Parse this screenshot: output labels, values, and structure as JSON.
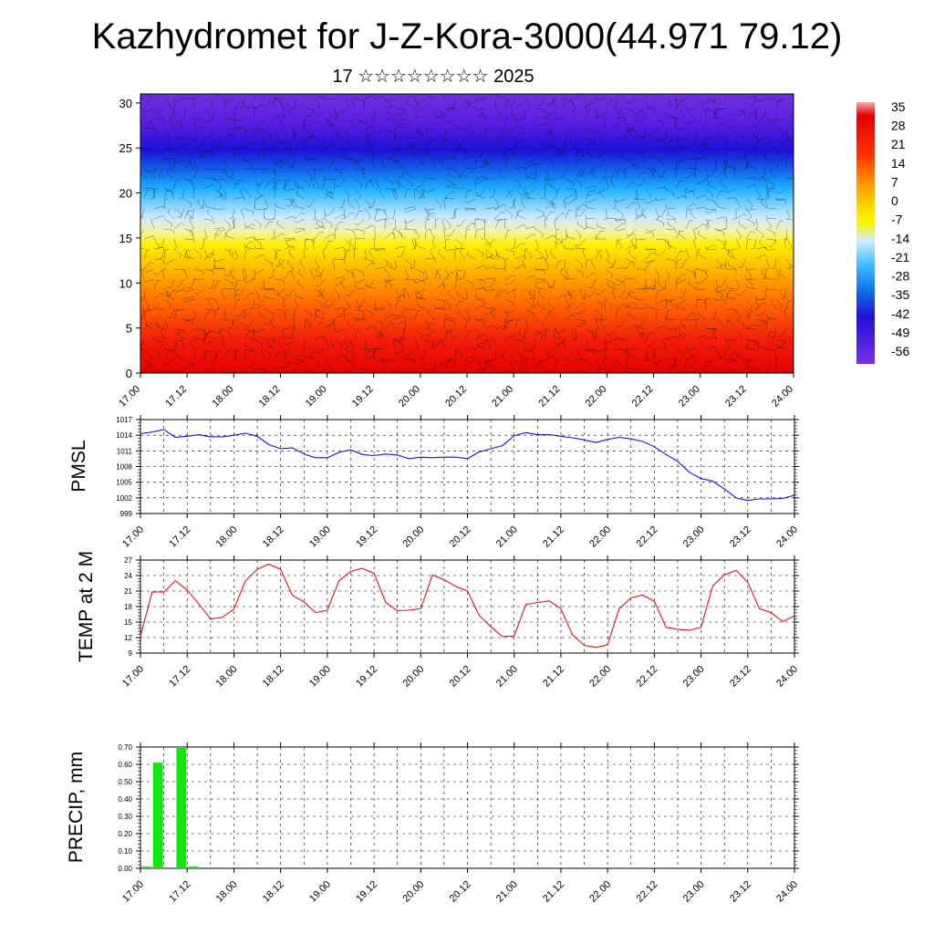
{
  "title": "Kazhydromet for J-Z-Kora-3000(44.971 79.12)",
  "subtitle": "17 ☆☆☆☆☆☆☆☆ 2025",
  "time_ticks": [
    "17.00",
    "17.12",
    "18.00",
    "18.12",
    "19.00",
    "19.12",
    "20.00",
    "20.12",
    "21.00",
    "21.12",
    "22.00",
    "22.12",
    "23.00",
    "23.12",
    "24.00"
  ],
  "chart_data": [
    {
      "type": "heatmap",
      "title": "",
      "xlabel": "",
      "ylabel": "",
      "x_ticks": [
        "17.00",
        "17.12",
        "18.00",
        "18.12",
        "19.00",
        "19.12",
        "20.00",
        "20.12",
        "21.00",
        "21.12",
        "22.00",
        "22.12",
        "23.00",
        "23.12",
        "24.00"
      ],
      "y_ticks": [
        0,
        5,
        10,
        15,
        20,
        25,
        30
      ],
      "ylim": [
        0,
        31
      ],
      "colorbar_labels": [
        "35",
        "28",
        "21",
        "14",
        "7",
        "0",
        "-7",
        "-14",
        "-21",
        "-28",
        "-35",
        "-42",
        "-49",
        "-56"
      ],
      "vertical_temperature_profile": [
        {
          "height": 0,
          "temp": 28
        },
        {
          "height": 5,
          "temp": 20
        },
        {
          "height": 10,
          "temp": 7
        },
        {
          "height": 15,
          "temp": -10
        },
        {
          "height": 17,
          "temp": -20
        },
        {
          "height": 20,
          "temp": -35
        },
        {
          "height": 25,
          "temp": -60
        },
        {
          "height": 31,
          "temp": -55
        }
      ],
      "overlay": "wind barbs"
    },
    {
      "type": "line",
      "ylabel": "PMSL",
      "ylim": [
        999,
        1017
      ],
      "y_ticks": [
        999,
        1002,
        1005,
        1008,
        1011,
        1014,
        1017
      ],
      "x_ticks": [
        "17.00",
        "17.12",
        "18.00",
        "18.12",
        "19.00",
        "19.12",
        "20.00",
        "20.12",
        "21.00",
        "21.12",
        "22.00",
        "22.12",
        "23.00",
        "23.12",
        "24.00"
      ],
      "series": [
        {
          "color": "#1414d2",
          "x": [
            0,
            3,
            6,
            9,
            12,
            15,
            18,
            21,
            24,
            27,
            30,
            33,
            36,
            39,
            42,
            45,
            48,
            51,
            54,
            57,
            60,
            63,
            66,
            69,
            72,
            75,
            78,
            81,
            84,
            87,
            90,
            93,
            96,
            99,
            102,
            105,
            108,
            111,
            114,
            117,
            120,
            123,
            126,
            129,
            132,
            135,
            138,
            141,
            144,
            147,
            150,
            153,
            156,
            159,
            162,
            165,
            168
          ],
          "values": [
            1014.3,
            1014.6,
            1015.1,
            1013.6,
            1013.8,
            1014.1,
            1013.7,
            1013.7,
            1014.0,
            1014.4,
            1013.8,
            1012.2,
            1011.4,
            1011.6,
            1010.4,
            1009.7,
            1009.7,
            1010.7,
            1011.2,
            1010.3,
            1010.1,
            1010.4,
            1010.2,
            1009.5,
            1009.8,
            1009.7,
            1009.8,
            1009.8,
            1009.5,
            1010.8,
            1011.4,
            1012.0,
            1013.9,
            1014.5,
            1014.1,
            1014.1,
            1013.8,
            1013.5,
            1013.1,
            1012.6,
            1013.2,
            1013.6,
            1013.3,
            1012.8,
            1011.8,
            1010.3,
            1009.0,
            1006.9,
            1005.7,
            1005.2,
            1003.7,
            1002.0,
            1001.5,
            1001.8,
            1001.8,
            1001.9,
            1002.5
          ]
        }
      ]
    },
    {
      "type": "line",
      "ylabel": "TEMP at 2 M",
      "ylim": [
        9,
        27
      ],
      "y_ticks": [
        9,
        12,
        15,
        18,
        21,
        24,
        27
      ],
      "x_ticks": [
        "17.00",
        "17.12",
        "18.00",
        "18.12",
        "19.00",
        "19.12",
        "20.00",
        "20.12",
        "21.00",
        "21.12",
        "22.00",
        "22.12",
        "23.00",
        "23.12",
        "24.00"
      ],
      "series": [
        {
          "color": "#e41414",
          "x": [
            0,
            3,
            6,
            9,
            12,
            15,
            18,
            21,
            24,
            27,
            30,
            33,
            36,
            39,
            42,
            45,
            48,
            51,
            54,
            57,
            60,
            63,
            66,
            69,
            72,
            75,
            78,
            81,
            84,
            87,
            90,
            93,
            96,
            99,
            102,
            105,
            108,
            111,
            114,
            117,
            120,
            123,
            126,
            129,
            132,
            135,
            138,
            141,
            144,
            147,
            150,
            153,
            156,
            159,
            162,
            165,
            168
          ],
          "values": [
            12.3,
            20.8,
            20.8,
            23.0,
            21.2,
            18.5,
            15.6,
            15.9,
            17.5,
            23.0,
            25.2,
            26.2,
            25.2,
            20.2,
            18.9,
            16.8,
            17.3,
            23.0,
            24.8,
            25.4,
            24.4,
            18.8,
            17.2,
            17.3,
            17.6,
            24.1,
            23.2,
            21.9,
            21.0,
            16.3,
            14.1,
            12.2,
            12.3,
            18.4,
            18.8,
            19.1,
            17.6,
            12.5,
            10.5,
            10.1,
            10.6,
            17.6,
            19.7,
            20.2,
            19.0,
            14.0,
            13.6,
            13.4,
            14.0,
            22.0,
            24.1,
            25.0,
            22.7,
            17.6,
            16.8,
            15.1,
            16.2
          ]
        }
      ]
    },
    {
      "type": "bar",
      "ylabel": "PRECIP, mm",
      "ylim": [
        0,
        0.7
      ],
      "y_ticks": [
        "0.00",
        "0.10",
        "0.20",
        "0.30",
        "0.40",
        "0.50",
        "0.60",
        "0.70"
      ],
      "x_ticks": [
        "17.00",
        "17.12",
        "18.00",
        "18.12",
        "19.00",
        "19.12",
        "20.00",
        "20.12",
        "21.00",
        "21.12",
        "22.00",
        "22.12",
        "23.00",
        "23.12",
        "24.00"
      ],
      "series": [
        {
          "color": "#14e614",
          "x": [
            0,
            3,
            6,
            9,
            12,
            15
          ],
          "values": [
            0.01,
            0.61,
            0.0,
            0.7,
            0.01,
            0.0
          ]
        }
      ]
    }
  ]
}
